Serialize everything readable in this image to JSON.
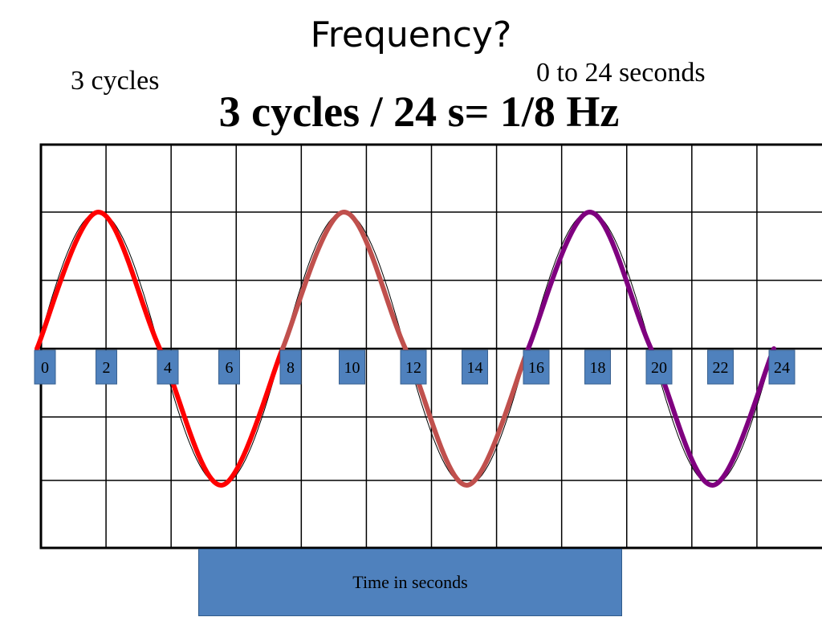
{
  "title": "Frequency?",
  "cycles_note": "3 cycles",
  "range_note": "0 to 24 seconds",
  "formula": "3 cycles / 24 s= 1/8 Hz",
  "time_label": "Time  in seconds",
  "colors": {
    "cycle1": "#ff0000",
    "cycle2": "#c0504d",
    "cycle3": "#7f007f",
    "tick_box": "#4f81bd",
    "reference_wave": "#000000"
  },
  "chart_data": {
    "type": "line",
    "x_ticks": [
      "0",
      "2",
      "4",
      "6",
      "8",
      "10",
      "12",
      "14",
      "16",
      "18",
      "20",
      "22",
      "24"
    ],
    "xlim": [
      0,
      24
    ],
    "grid": true,
    "series": [
      {
        "x": [
          0,
          2,
          4,
          6,
          8
        ],
        "y": [
          0,
          1,
          0,
          -1,
          0
        ]
      },
      {
        "x": [
          8,
          10,
          12,
          14,
          16
        ],
        "y": [
          0,
          1,
          0,
          -1,
          0
        ]
      },
      {
        "x": [
          16,
          18,
          20,
          22,
          24
        ],
        "y": [
          0,
          1,
          0,
          -1,
          0
        ]
      }
    ]
  }
}
